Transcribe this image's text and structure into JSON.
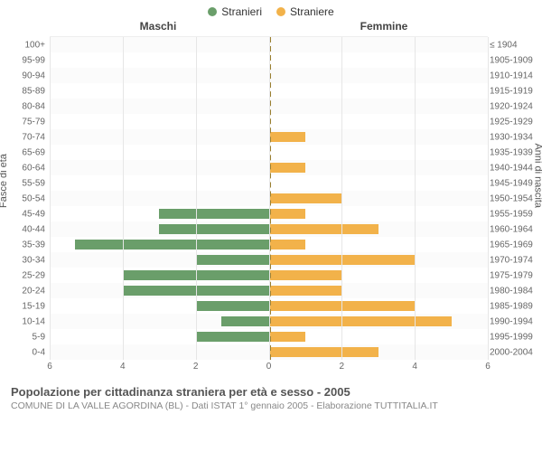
{
  "legend": {
    "male": {
      "label": "Stranieri",
      "color": "#6a9e6a"
    },
    "female": {
      "label": "Straniere",
      "color": "#f2b24a"
    }
  },
  "side_titles": {
    "left": "Maschi",
    "right": "Femmine"
  },
  "y_axis_left_label": "Fasce di età",
  "y_axis_right_label": "Anni di nascita",
  "x_axis": {
    "max": 6,
    "ticks": [
      6,
      4,
      2,
      0,
      2,
      4,
      6
    ]
  },
  "colors": {
    "male_bar": "#6a9e6a",
    "female_bar": "#f2b24a",
    "grid": "#e6e6e6",
    "center_dash": "#9a7f2f",
    "text": "#555555",
    "subtext": "#888888",
    "background": "#ffffff"
  },
  "title": "Popolazione per cittadinanza straniera per età e sesso - 2005",
  "subtitle": "COMUNE DI LA VALLE AGORDINA (BL) - Dati ISTAT 1° gennaio 2005 - Elaborazione TUTTITALIA.IT",
  "rows": [
    {
      "age": "100+",
      "birth": "≤ 1904",
      "m": 0,
      "f": 0
    },
    {
      "age": "95-99",
      "birth": "1905-1909",
      "m": 0,
      "f": 0
    },
    {
      "age": "90-94",
      "birth": "1910-1914",
      "m": 0,
      "f": 0
    },
    {
      "age": "85-89",
      "birth": "1915-1919",
      "m": 0,
      "f": 0
    },
    {
      "age": "80-84",
      "birth": "1920-1924",
      "m": 0,
      "f": 0
    },
    {
      "age": "75-79",
      "birth": "1925-1929",
      "m": 0,
      "f": 0
    },
    {
      "age": "70-74",
      "birth": "1930-1934",
      "m": 0,
      "f": 1
    },
    {
      "age": "65-69",
      "birth": "1935-1939",
      "m": 0,
      "f": 0
    },
    {
      "age": "60-64",
      "birth": "1940-1944",
      "m": 0,
      "f": 1
    },
    {
      "age": "55-59",
      "birth": "1945-1949",
      "m": 0,
      "f": 0
    },
    {
      "age": "50-54",
      "birth": "1950-1954",
      "m": 0,
      "f": 2
    },
    {
      "age": "45-49",
      "birth": "1955-1959",
      "m": 3,
      "f": 1
    },
    {
      "age": "40-44",
      "birth": "1960-1964",
      "m": 3,
      "f": 3
    },
    {
      "age": "35-39",
      "birth": "1965-1969",
      "m": 5.3,
      "f": 1
    },
    {
      "age": "30-34",
      "birth": "1970-1974",
      "m": 2,
      "f": 4
    },
    {
      "age": "25-29",
      "birth": "1975-1979",
      "m": 4,
      "f": 2
    },
    {
      "age": "20-24",
      "birth": "1980-1984",
      "m": 4,
      "f": 2
    },
    {
      "age": "15-19",
      "birth": "1985-1989",
      "m": 2,
      "f": 4
    },
    {
      "age": "10-14",
      "birth": "1990-1994",
      "m": 1.3,
      "f": 5
    },
    {
      "age": "5-9",
      "birth": "1995-1999",
      "m": 2,
      "f": 1
    },
    {
      "age": "0-4",
      "birth": "2000-2004",
      "m": 0,
      "f": 3
    }
  ]
}
